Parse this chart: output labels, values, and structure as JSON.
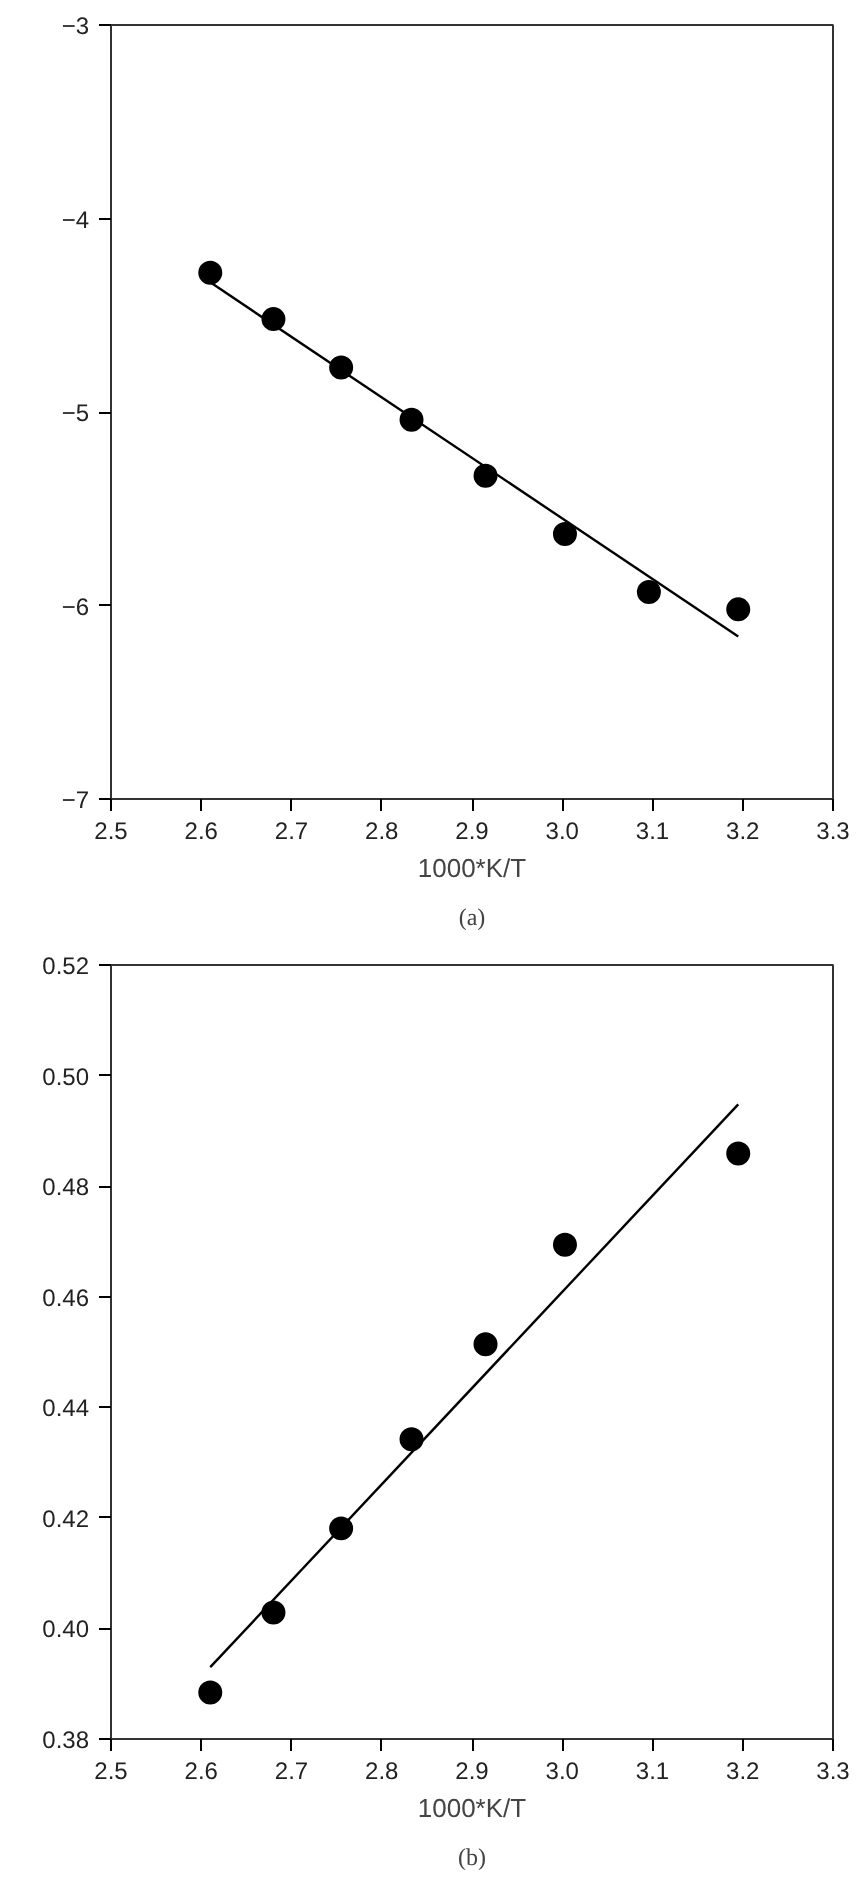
{
  "chart_data": [
    {
      "type": "scatter",
      "xlabel": "1000*K/T",
      "annotations": [
        "(a)"
      ],
      "grid": false,
      "xlim": [
        2.5,
        3.3
      ],
      "ylim": [
        -7,
        -3
      ],
      "xticks": [
        2.5,
        2.6,
        2.7,
        2.8,
        2.9,
        {
          "value": 3.0,
          "label": "3.0"
        },
        3.1,
        3.2,
        3.3
      ],
      "yticks": [
        -7,
        -6,
        -5,
        -4,
        -3
      ],
      "series": [
        {
          "marker": "circle",
          "color": "#000000",
          "x": [
            2.61,
            2.68,
            2.755,
            2.833,
            2.915,
            3.003,
            3.096,
            3.195
          ],
          "values": [
            -4.28,
            -4.52,
            -4.77,
            -5.04,
            -5.33,
            -5.63,
            -5.93,
            -6.02
          ]
        },
        {
          "type": "line",
          "marker": "none",
          "color": "#000000",
          "x": [
            2.61,
            3.195
          ],
          "values": [
            -4.33,
            -6.16
          ]
        }
      ]
    },
    {
      "type": "scatter",
      "xlabel": "1000*K/T",
      "annotations": [
        "(b)"
      ],
      "grid": false,
      "xlim": [
        2.5,
        3.3
      ],
      "ylim": [
        0.38,
        0.52
      ],
      "xticks": [
        2.5,
        2.6,
        2.7,
        2.8,
        2.9,
        {
          "value": 3.0,
          "label": "3.0"
        },
        3.1,
        3.2,
        3.3
      ],
      "yticks": [
        0.38,
        {
          "value": 0.4,
          "label": "0.40"
        },
        0.42,
        0.44,
        0.46,
        0.48,
        {
          "value": 0.5,
          "label": "0.50"
        },
        0.52
      ],
      "series": [
        {
          "marker": "circle",
          "color": "#000000",
          "x": [
            2.61,
            2.68,
            2.755,
            2.833,
            2.915,
            3.003,
            3.195
          ],
          "values": [
            0.3884,
            0.4029,
            0.4181,
            0.4342,
            0.4514,
            0.4694,
            0.4859
          ]
        },
        {
          "type": "line",
          "marker": "none",
          "color": "#000000",
          "x": [
            2.61,
            3.195
          ],
          "values": [
            0.393,
            0.4948
          ]
        }
      ]
    }
  ]
}
